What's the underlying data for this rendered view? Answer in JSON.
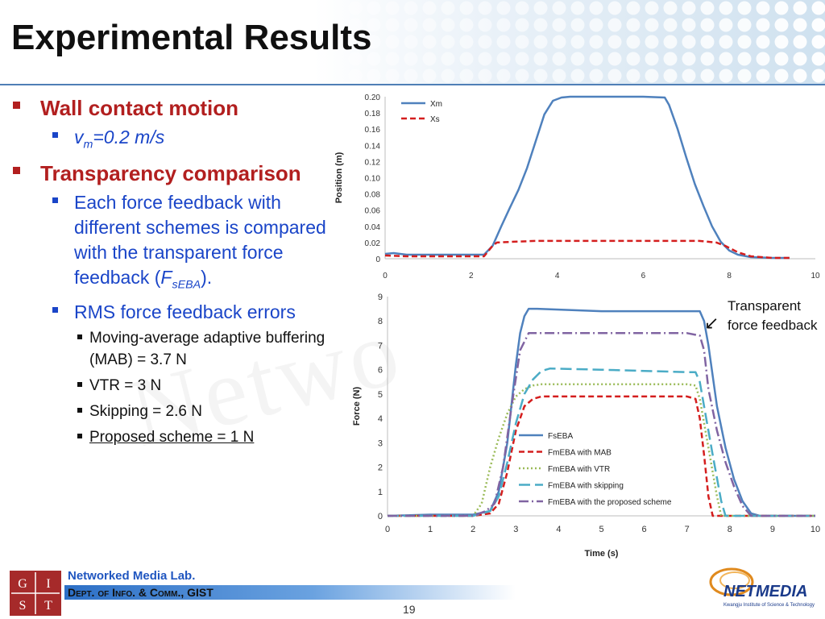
{
  "slide": {
    "title": "Experimental Results",
    "page_number": "19"
  },
  "bullets": {
    "wall_contact": "Wall contact motion",
    "vm_label": "v",
    "vm_sub": "m",
    "vm_value": "=0.2 m/s",
    "transparency": "Transparency comparison",
    "each_force_text": "Each force feedback with different schemes is compared with the transparent force feedback (",
    "f_label": "F",
    "f_sub": "sEBA",
    "f_close": ").",
    "rms": "RMS force feedback errors",
    "sub_items": [
      "Moving-average adaptive buffering (MAB) = 3.7 N",
      "VTR = 3 N",
      "Skipping = 2.6 N",
      "Proposed scheme = 1 N"
    ]
  },
  "callout": {
    "text": "Transparent force feedback",
    "arrow": "↙"
  },
  "footer": {
    "lab_name": "Networked Media Lab.",
    "dept": "Dept. of Info. & Comm., GIST",
    "gist_letters": [
      "G",
      "I",
      "S",
      "T"
    ],
    "netmedia_logo": "NETMEDIA",
    "netmedia_sub": "Kwangju Institute of Science & Technology"
  },
  "colors": {
    "accent_red": "#b21f1f",
    "accent_blue": "#1a45c8",
    "series_blue": "#4f81bd",
    "series_red": "#d41e1e",
    "series_green": "#9bbb59",
    "series_cyan": "#4bacc6",
    "series_purple": "#8064a2"
  },
  "chart_data": [
    {
      "type": "line",
      "title": "",
      "xlabel": "",
      "ylabel": "Position (m)",
      "xlim": [
        0,
        10
      ],
      "ylim": [
        0,
        0.2
      ],
      "xticks": [
        "0",
        "2",
        "4",
        "6",
        "8",
        "10"
      ],
      "yticks": [
        "0",
        "0.02",
        "0.04",
        "0.06",
        "0.08",
        "0.10",
        "0.12",
        "0.14",
        "0.16",
        "0.18",
        "0.20"
      ],
      "legend_position": "top-left",
      "series": [
        {
          "name": "Xm",
          "color": "#4f81bd",
          "dash": "solid",
          "x": [
            0,
            0.2,
            0.5,
            1.0,
            1.5,
            2.0,
            2.3,
            2.5,
            2.7,
            2.9,
            3.1,
            3.3,
            3.5,
            3.7,
            3.9,
            4.1,
            4.3,
            6.0,
            6.5,
            6.6,
            6.8,
            7.0,
            7.2,
            7.4,
            7.6,
            7.8,
            8.0,
            8.2,
            8.5,
            9.0,
            9.4
          ],
          "y": [
            0.006,
            0.007,
            0.005,
            0.005,
            0.005,
            0.005,
            0.005,
            0.016,
            0.04,
            0.063,
            0.085,
            0.112,
            0.145,
            0.178,
            0.195,
            0.199,
            0.2,
            0.2,
            0.199,
            0.19,
            0.16,
            0.125,
            0.092,
            0.065,
            0.04,
            0.021,
            0.01,
            0.005,
            0.002,
            0.001,
            0.001
          ]
        },
        {
          "name": "Xs",
          "color": "#d41e1e",
          "dash": "dashed",
          "x": [
            0,
            0.5,
            1.0,
            2.3,
            2.5,
            2.6,
            3.0,
            3.5,
            6.0,
            7.3,
            7.5,
            7.7,
            7.9,
            8.2,
            8.5,
            9.0,
            9.4
          ],
          "y": [
            0.004,
            0.003,
            0.003,
            0.003,
            0.016,
            0.02,
            0.021,
            0.022,
            0.022,
            0.022,
            0.021,
            0.02,
            0.016,
            0.008,
            0.003,
            0.001,
            0.001
          ]
        }
      ]
    },
    {
      "type": "line",
      "title": "",
      "xlabel": "Time (s)",
      "ylabel": "Force (N)",
      "xlim": [
        0,
        10
      ],
      "ylim": [
        0,
        9
      ],
      "xticks": [
        "0",
        "1",
        "2",
        "3",
        "4",
        "5",
        "6",
        "7",
        "8",
        "9",
        "10"
      ],
      "yticks": [
        "0",
        "1",
        "2",
        "3",
        "4",
        "5",
        "6",
        "7",
        "8",
        "9"
      ],
      "legend_position": "bottom-right",
      "series": [
        {
          "name": "FsEBA",
          "color": "#4f81bd",
          "dash": "solid",
          "x": [
            0,
            1.0,
            2.0,
            2.4,
            2.6,
            2.8,
            3.0,
            3.1,
            3.2,
            3.3,
            3.5,
            5.0,
            7.0,
            7.3,
            7.4,
            7.5,
            7.7,
            7.9,
            8.1,
            8.3,
            8.5,
            8.7,
            10
          ],
          "y": [
            0,
            0.05,
            0.05,
            0.2,
            1.0,
            3.0,
            6.2,
            7.5,
            8.2,
            8.5,
            8.5,
            8.4,
            8.4,
            8.4,
            8.0,
            7.0,
            4.5,
            2.8,
            1.5,
            0.6,
            0.1,
            0,
            0
          ]
        },
        {
          "name": "FmEBA with MAB",
          "color": "#d41e1e",
          "dash": "dashed",
          "x": [
            0,
            2.0,
            2.4,
            2.6,
            2.8,
            3.0,
            3.2,
            3.4,
            3.6,
            5.0,
            7.0,
            7.2,
            7.3,
            7.4,
            7.5,
            7.6,
            10
          ],
          "y": [
            0,
            0,
            0.1,
            0.5,
            1.8,
            3.5,
            4.5,
            4.8,
            4.9,
            4.9,
            4.9,
            4.8,
            4.0,
            2.5,
            0.8,
            0,
            0
          ]
        },
        {
          "name": "FmEBA with VTR",
          "color": "#9bbb59",
          "dash": "dotted",
          "x": [
            0,
            2.0,
            2.2,
            2.4,
            2.6,
            2.8,
            3.0,
            3.2,
            3.4,
            3.6,
            7.0,
            7.2,
            7.3,
            7.5,
            7.7,
            7.8,
            10
          ],
          "y": [
            0,
            0,
            0.5,
            2.0,
            3.2,
            4.2,
            4.9,
            5.2,
            5.35,
            5.4,
            5.4,
            5.35,
            4.8,
            2.8,
            0.8,
            0,
            0
          ]
        },
        {
          "name": "FmEBA with skipping",
          "color": "#4bacc6",
          "dash": "longdash",
          "x": [
            0,
            2.0,
            2.4,
            2.6,
            2.8,
            3.0,
            3.2,
            3.4,
            3.6,
            3.8,
            5.0,
            7.0,
            7.2,
            7.3,
            7.4,
            7.6,
            7.8,
            7.9,
            10
          ],
          "y": [
            0,
            0,
            0.2,
            0.8,
            2.2,
            3.8,
            5.0,
            5.6,
            5.95,
            6.05,
            6.0,
            5.9,
            5.9,
            5.5,
            4.5,
            2.5,
            0.6,
            0,
            0
          ]
        },
        {
          "name": "FmEBA with the proposed scheme",
          "color": "#8064a2",
          "dash": "dashdot",
          "x": [
            0,
            2.0,
            2.3,
            2.5,
            2.7,
            2.9,
            3.1,
            3.3,
            3.5,
            5.0,
            7.0,
            7.3,
            7.4,
            7.5,
            7.7,
            7.9,
            8.1,
            8.3,
            8.5,
            10
          ],
          "y": [
            0,
            0,
            0.2,
            0.5,
            2.0,
            4.5,
            6.8,
            7.5,
            7.5,
            7.5,
            7.5,
            7.4,
            6.8,
            5.2,
            3.5,
            2.2,
            1.2,
            0.4,
            0,
            0
          ]
        }
      ]
    }
  ]
}
